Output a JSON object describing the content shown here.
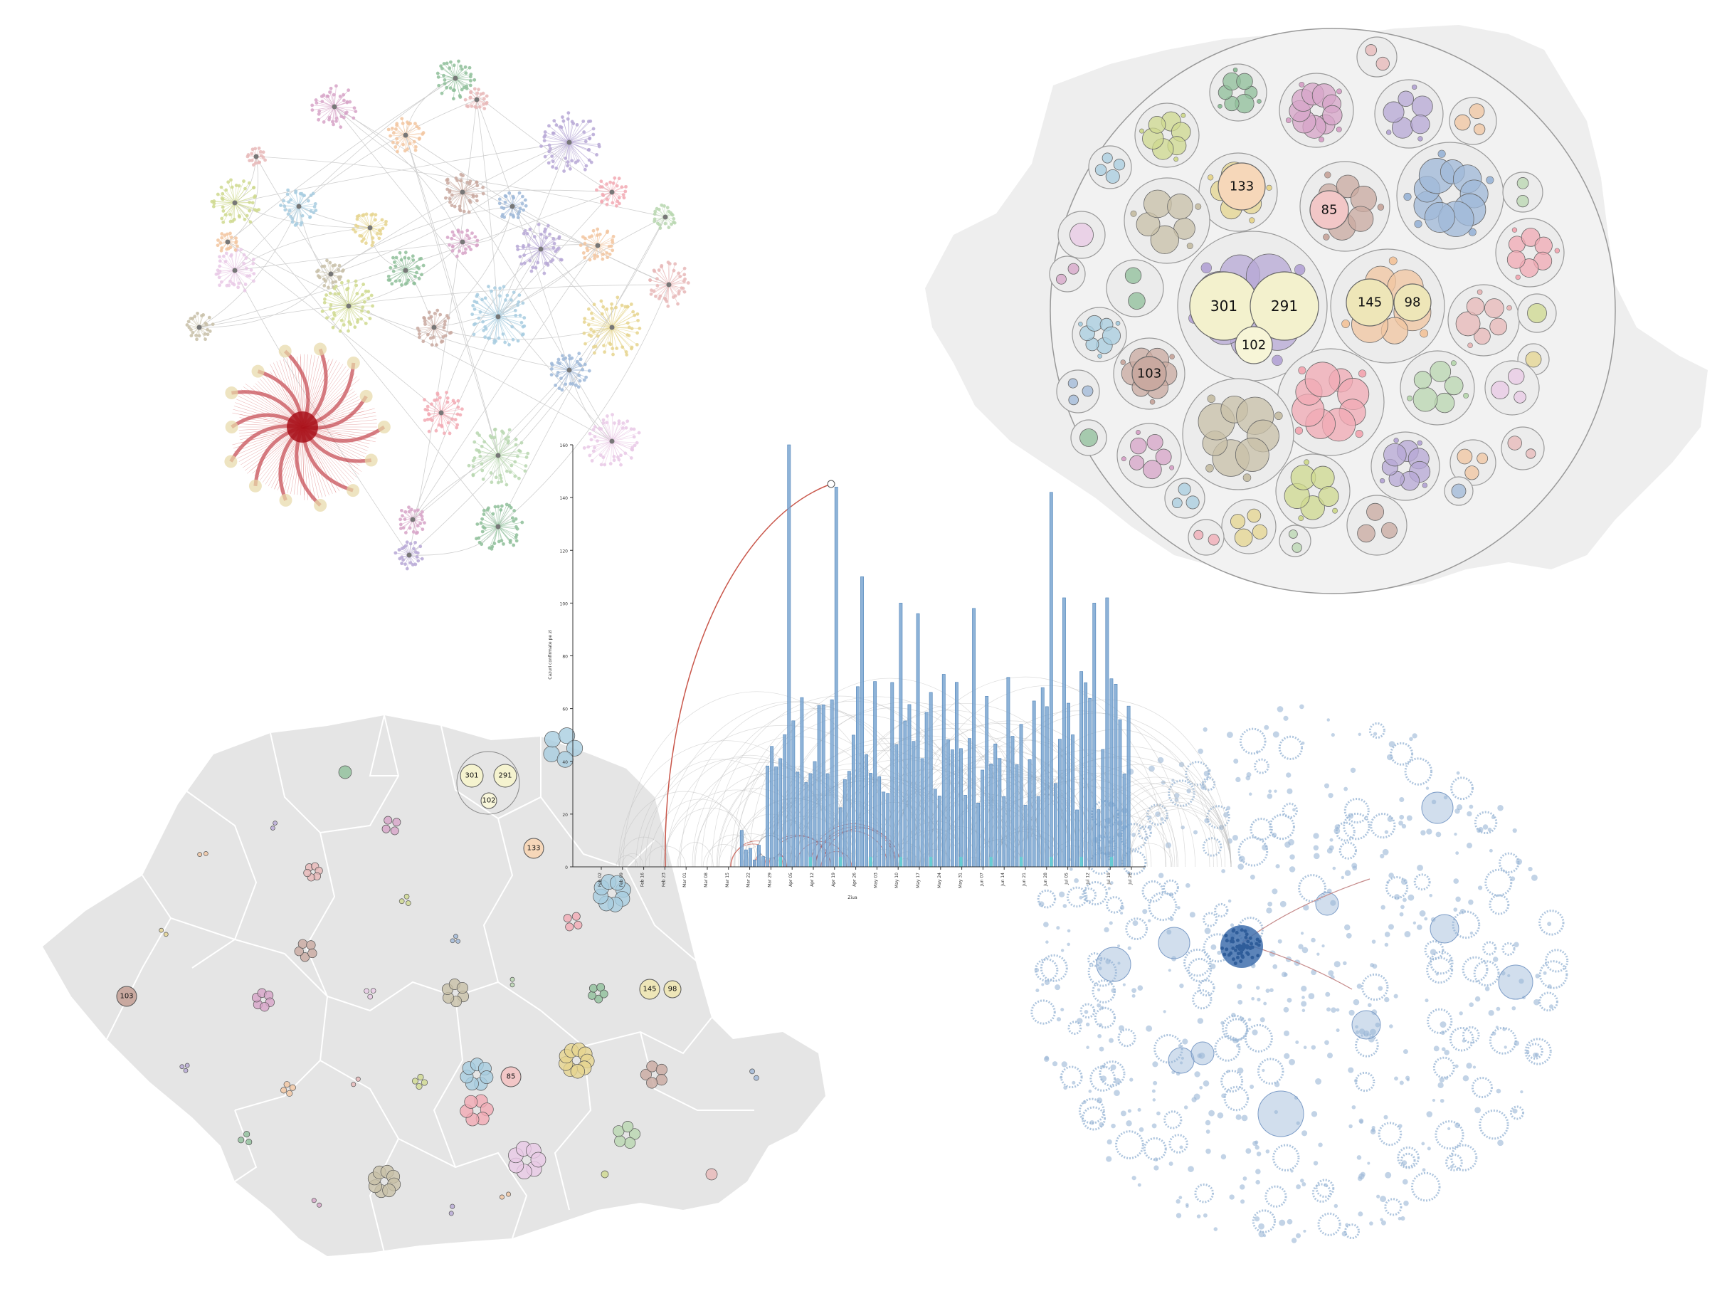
{
  "palette": [
    "#8fbf9a",
    "#d7a4c8",
    "#b7a8d6",
    "#f2c6a0",
    "#e8b8b8",
    "#cfd98f",
    "#a8cde0",
    "#e6d58f",
    "#c9a9a0",
    "#9fb8d8",
    "#f2aab4",
    "#b9d7b0",
    "#e9c9e6",
    "#c8c0a8"
  ],
  "colors": {
    "map_fill": "#e6e6e6",
    "map_border": "#ffffff",
    "pack_fill": "#eeeeee",
    "pack_stroke": "#999999",
    "bar": "#7aa6d1",
    "bar_edge": "#4f83b8",
    "arc_grey": "#bdbdbd",
    "arc_red": "#c0392b",
    "cyan": "#5fd3d3",
    "blue_net": "#9ab6d6",
    "blue_dark": "#3f6fad"
  },
  "circle_pack": {
    "labels": [
      "133",
      "85",
      "301",
      "291",
      "102",
      "145",
      "98",
      "103"
    ]
  },
  "map_bubbles": {
    "labels": [
      "301",
      "291",
      "102",
      "133",
      "103",
      "145",
      "98",
      "85"
    ]
  },
  "timeline": {
    "ylabel": "Cazuri confirmate pe zi",
    "xlabel": "Ziua",
    "yticks": [
      "0",
      "20",
      "40",
      "60",
      "80",
      "100",
      "120",
      "140",
      "160"
    ],
    "xticks": [
      "Feb 02",
      "Feb 09",
      "Feb 16",
      "Feb 23",
      "Mar 01",
      "Mar 08",
      "Mar 15",
      "Mar 22",
      "Mar 29",
      "Apr 05",
      "Apr 12",
      "Apr 19",
      "Apr 26",
      "May 03",
      "May 10",
      "May 17",
      "May 24",
      "May 31",
      "Jun 07",
      "Jun 14",
      "Jun 21",
      "Jun 28",
      "Jul 05",
      "Jul 12",
      "Jul 19",
      "Jul 26"
    ],
    "ylim": [
      0,
      160
    ]
  }
}
